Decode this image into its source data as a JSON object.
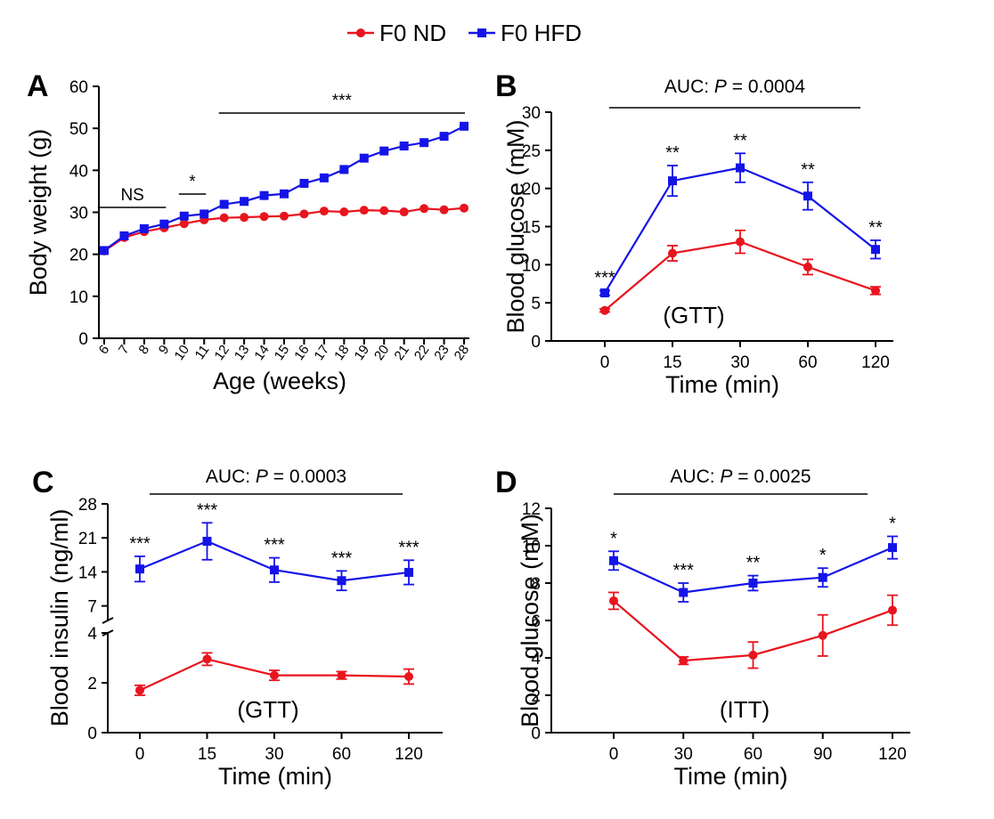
{
  "legend": {
    "position": "top-center",
    "items": [
      {
        "label": "F0 ND",
        "color": "#e8141e",
        "marker": "circle"
      },
      {
        "label": "F0 HFD",
        "color": "#1414e8",
        "marker": "square"
      }
    ]
  },
  "chart_data": [
    {
      "panel": "A",
      "type": "line",
      "xlabel": "Age (weeks)",
      "ylabel": "Body weight (g)",
      "categories": [
        "6",
        "7",
        "8",
        "9",
        "10",
        "11",
        "12",
        "13",
        "14",
        "15",
        "16",
        "17",
        "18",
        "19",
        "20",
        "21",
        "22",
        "23",
        "28"
      ],
      "ylim": [
        0,
        60
      ],
      "yticks": [
        0,
        10,
        20,
        30,
        40,
        50,
        60
      ],
      "grid": false,
      "series": [
        {
          "name": "F0 ND",
          "color": "#e8141e",
          "values": [
            20.8,
            24.0,
            25.4,
            26.3,
            27.3,
            28.2,
            28.7,
            28.8,
            29.0,
            29.1,
            29.6,
            30.3,
            30.1,
            30.5,
            30.4,
            30.1,
            30.9,
            30.6,
            31.0
          ]
        },
        {
          "name": "F0 HFD",
          "color": "#1414e8",
          "values": [
            20.9,
            24.4,
            26.1,
            27.2,
            29.1,
            29.6,
            31.9,
            32.6,
            34.0,
            34.4,
            36.9,
            38.2,
            40.2,
            42.9,
            44.6,
            45.8,
            46.6,
            48.1,
            50.5
          ]
        }
      ],
      "sig_brackets": [
        {
          "label": "NS",
          "from": "6",
          "to": "9"
        },
        {
          "label": "*",
          "from": "10",
          "to": "11"
        },
        {
          "label": "***",
          "from": "12",
          "to": "28"
        }
      ]
    },
    {
      "panel": "B",
      "type": "line",
      "xlabel": "Time (min)",
      "ylabel": "Blood glucose (mM)",
      "categories": [
        "0",
        "15",
        "30",
        "60",
        "120"
      ],
      "ylim": [
        0,
        30
      ],
      "yticks": [
        0,
        5,
        10,
        15,
        20,
        25,
        30
      ],
      "annotation": "(GTT)",
      "auc": {
        "prefix": "AUC: ",
        "p": "P",
        "rest": " = 0.0004"
      },
      "grid": false,
      "series": [
        {
          "name": "F0 ND",
          "color": "#e8141e",
          "values": [
            4.0,
            11.5,
            13.0,
            9.7,
            6.6
          ],
          "err": [
            0.2,
            1.0,
            1.5,
            1.0,
            0.5
          ]
        },
        {
          "name": "F0 HFD",
          "color": "#1414e8",
          "values": [
            6.3,
            21.0,
            22.7,
            19.0,
            12.0
          ],
          "err": [
            0.3,
            2.0,
            1.9,
            1.8,
            1.2
          ]
        }
      ],
      "stars": [
        "***",
        "**",
        "**",
        "**",
        "**"
      ]
    },
    {
      "panel": "C",
      "type": "line",
      "xlabel": "Time (min)",
      "ylabel": "Blood insulin (ng/ml)",
      "categories": [
        "0",
        "15",
        "30",
        "60",
        "120"
      ],
      "ylim_lower": [
        0,
        4
      ],
      "ylim_upper": [
        4,
        28
      ],
      "yticks_lower": [
        0,
        2,
        4
      ],
      "yticks_upper": [
        7,
        14,
        21,
        28
      ],
      "axis_break": true,
      "annotation": "(GTT)",
      "auc": {
        "prefix": "AUC: ",
        "p": "P",
        "rest": " = 0.0003"
      },
      "grid": false,
      "series": [
        {
          "name": "F0 ND",
          "color": "#e8141e",
          "values": [
            1.7,
            2.95,
            2.3,
            2.3,
            2.25
          ],
          "err": [
            0.2,
            0.25,
            0.2,
            0.15,
            0.3
          ]
        },
        {
          "name": "F0 HFD",
          "color": "#1414e8",
          "values": [
            14.6,
            20.3,
            14.4,
            12.2,
            13.9
          ],
          "err": [
            2.6,
            3.8,
            2.5,
            2.0,
            2.5
          ]
        }
      ],
      "stars": [
        "***",
        "***",
        "***",
        "***",
        "***"
      ]
    },
    {
      "panel": "D",
      "type": "line",
      "xlabel": "Time (min)",
      "ylabel": "Blood glucose (mM)",
      "categories": [
        "0",
        "30",
        "60",
        "90",
        "120"
      ],
      "ylim": [
        0,
        12
      ],
      "yticks": [
        0,
        2,
        4,
        6,
        8,
        10,
        12
      ],
      "annotation": "(ITT)",
      "auc": {
        "prefix": "AUC: ",
        "p": "P",
        "rest": " = 0.0025"
      },
      "grid": false,
      "series": [
        {
          "name": "F0 ND",
          "color": "#e8141e",
          "values": [
            7.05,
            3.85,
            4.15,
            5.2,
            6.55
          ],
          "err": [
            0.45,
            0.2,
            0.7,
            1.1,
            0.8
          ]
        },
        {
          "name": "F0 HFD",
          "color": "#1414e8",
          "values": [
            9.2,
            7.5,
            8.0,
            8.3,
            9.9
          ],
          "err": [
            0.5,
            0.5,
            0.4,
            0.5,
            0.6
          ]
        }
      ],
      "stars": [
        "*",
        "***",
        "**",
        "*",
        "*"
      ]
    }
  ]
}
